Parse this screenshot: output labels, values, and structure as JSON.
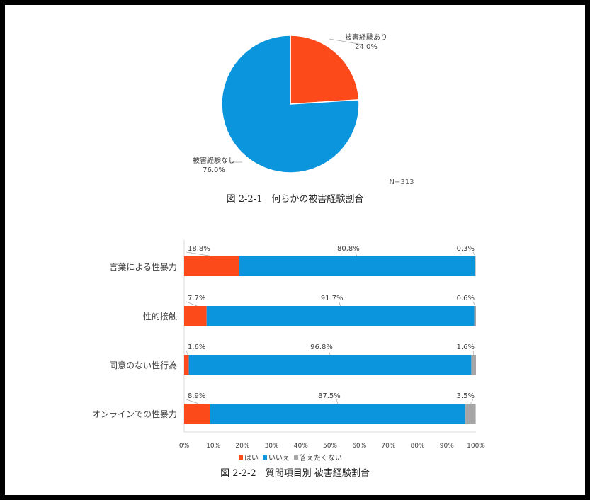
{
  "figure1": {
    "caption": "図 2-2-1　何らかの被害経験割合",
    "n_label": "N=313"
  },
  "figure2": {
    "caption": "図 2-2-2　質問項目別 被害経験割合"
  },
  "colors": {
    "yes": "#fc4a1a",
    "no": "#0a95dd",
    "no_answer": "#a6a6a6",
    "axis": "#d9d9d9",
    "text": "#404040"
  },
  "chart_data": [
    {
      "type": "pie",
      "labels": [
        "被害経験あり",
        "被害経験なし"
      ],
      "values": [
        24.0,
        76.0
      ],
      "value_labels": [
        "24.0%",
        "76.0%"
      ],
      "colors": [
        "#fc4a1a",
        "#0a95dd"
      ],
      "title": "",
      "annotation": "N=313"
    },
    {
      "type": "bar",
      "orientation": "horizontal",
      "stacked": true,
      "categories": [
        "言葉による性暴力",
        "性的接触",
        "同意のない性行為",
        "オンラインでの性暴力"
      ],
      "series": [
        {
          "name": "はい",
          "values": [
            18.8,
            7.7,
            1.6,
            8.9
          ],
          "labels": [
            "18.8%",
            "7.7%",
            "1.6%",
            "8.9%"
          ],
          "color": "#fc4a1a"
        },
        {
          "name": "いいえ",
          "values": [
            80.8,
            91.7,
            96.8,
            87.5
          ],
          "labels": [
            "80.8%",
            "91.7%",
            "96.8%",
            "87.5%"
          ],
          "color": "#0a95dd"
        },
        {
          "name": "答えたくない",
          "values": [
            0.3,
            0.6,
            1.6,
            3.5
          ],
          "labels": [
            "0.3%",
            "0.6%",
            "1.6%",
            "3.5%"
          ],
          "color": "#a6a6a6"
        }
      ],
      "xlim": [
        0,
        100
      ],
      "x_ticks": [
        "0%",
        "10%",
        "20%",
        "30%",
        "40%",
        "50%",
        "60%",
        "70%",
        "80%",
        "90%",
        "100%"
      ],
      "legend_position": "bottom",
      "grid": false,
      "title": ""
    }
  ]
}
